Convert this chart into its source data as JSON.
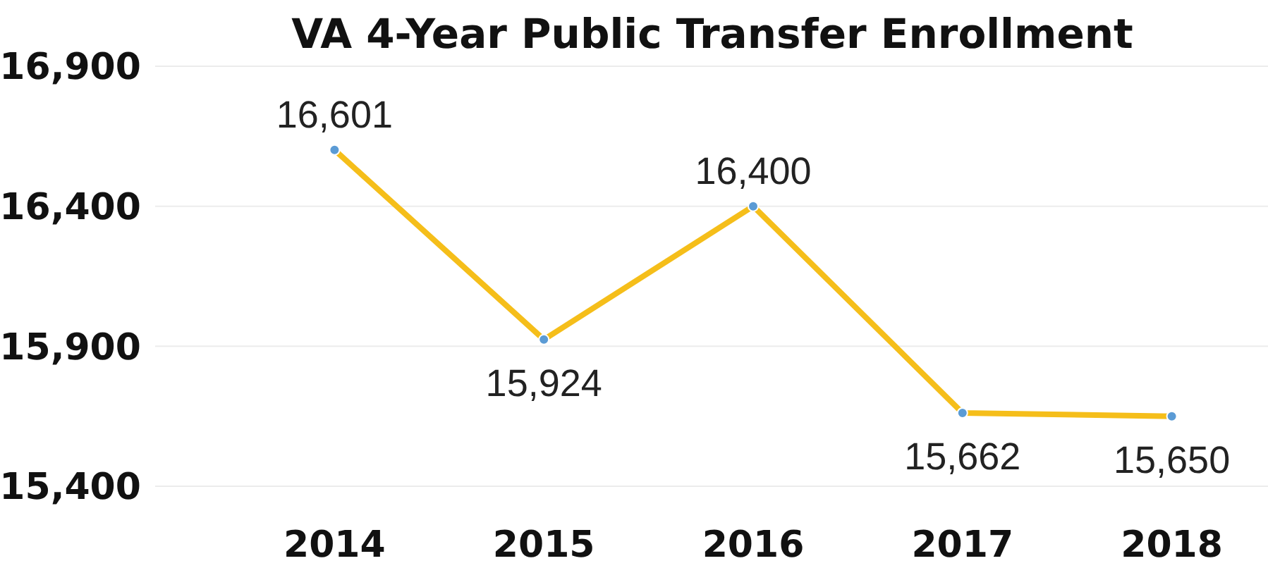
{
  "chart_data": {
    "type": "line",
    "title": "VA 4-Year Public Transfer Enrollment",
    "categories": [
      "2014",
      "2015",
      "2016",
      "2017",
      "2018"
    ],
    "series": [
      {
        "color": "#f5be1a",
        "values": [
          16601,
          15924,
          16400,
          15662,
          15650
        ],
        "value_labels": [
          "16,601",
          "15,924",
          "16,400",
          "15,662",
          "15,650"
        ]
      }
    ],
    "ylim": [
      15400,
      16900
    ],
    "yticks": [
      {
        "value": 15400,
        "label": "15,400"
      },
      {
        "value": 15900,
        "label": "15,900"
      },
      {
        "value": 16400,
        "label": "16,400"
      },
      {
        "value": 16900,
        "label": "16,900"
      }
    ],
    "grid": "y",
    "marker": "circle",
    "line_style": "solid"
  }
}
